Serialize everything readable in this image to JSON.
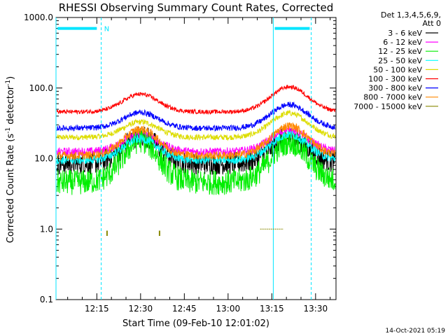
{
  "chart_data": {
    "type": "line",
    "title": "RHESSI Observing Summary Count Rates, Corrected",
    "xlabel": "Start Time (09-Feb-10 12:01:02)",
    "ylabel": "Corrected Count Rate (s",
    "ylabel_sup": "-1",
    "ylabel_mid": " detector",
    "ylabel_sup2": "-1",
    "ylabel_end": ")",
    "yscale": "log",
    "ylim": [
      0.1,
      1000
    ],
    "xlim_min": [
      0,
      96
    ],
    "x_ticks": [
      {
        "min": 14,
        "label": "12:15"
      },
      {
        "min": 29,
        "label": "12:30"
      },
      {
        "min": 44,
        "label": "12:45"
      },
      {
        "min": 59,
        "label": "13:00"
      },
      {
        "min": 74,
        "label": "13:15"
      },
      {
        "min": 89,
        "label": "13:30"
      }
    ],
    "y_ticks": [
      {
        "value": 1000,
        "label": "1000.0"
      },
      {
        "value": 100,
        "label": "100.0"
      },
      {
        "value": 10,
        "label": "10.0"
      },
      {
        "value": 1,
        "label": "1.0"
      },
      {
        "value": 0.1,
        "label": "0.1"
      }
    ],
    "legend_header": [
      "Det 1,3,4,5,6,9,",
      "Att 0"
    ],
    "series": [
      {
        "name": "3 - 6 keV",
        "color": "#000000",
        "base": 8.5,
        "peak1": 21,
        "peak2": 20,
        "noise": 0.16
      },
      {
        "name": "6 - 12 keV",
        "color": "#ff00ff",
        "base": 12.5,
        "peak1": 22,
        "peak2": 25,
        "noise": 0.06
      },
      {
        "name": "12 - 25 keV",
        "color": "#00ee00",
        "base": 4.6,
        "peak1": 18,
        "peak2": 17,
        "noise": 0.18
      },
      {
        "name": "25 - 50 keV",
        "color": "#00ffff",
        "base": 9.5,
        "peak1": 19,
        "peak2": 22,
        "noise": 0.06
      },
      {
        "name": "50 - 100 keV",
        "color": "#dddd00",
        "base": 20,
        "peak1": 33,
        "peak2": 44,
        "noise": 0.04
      },
      {
        "name": "100 - 300 keV",
        "color": "#ff0000",
        "base": 46,
        "peak1": 82,
        "peak2": 104,
        "noise": 0.03
      },
      {
        "name": "300 - 800 keV",
        "color": "#0000ff",
        "base": 27,
        "peak1": 45,
        "peak2": 58,
        "noise": 0.04
      },
      {
        "name": "800 - 7000 keV",
        "color": "#ff8800",
        "base": 11,
        "peak1": 26,
        "peak2": 29,
        "noise": 0.06
      },
      {
        "name": "7000 - 15000 keV",
        "color": "#888800",
        "base": null,
        "peak1": null,
        "peak2": null,
        "noise": 0
      }
    ],
    "night_intervals_min": [
      [
        0,
        15.5
      ],
      [
        74.5,
        87.5
      ]
    ],
    "night_label": "N",
    "saa_marker_min": [
      [
        0.5,
        14
      ],
      [
        75,
        87
      ]
    ],
    "saa_level": 700,
    "olive_marks": [
      {
        "min": 17.5,
        "lo": 0.8,
        "hi": 0.95
      },
      {
        "min": 35.5,
        "lo": 0.8,
        "hi": 0.95
      }
    ],
    "olive_segment": {
      "from_min": 70,
      "to_min": 78,
      "value": 1.0
    }
  },
  "footer": {
    "timestamp": "14-Oct-2021 05:19"
  }
}
